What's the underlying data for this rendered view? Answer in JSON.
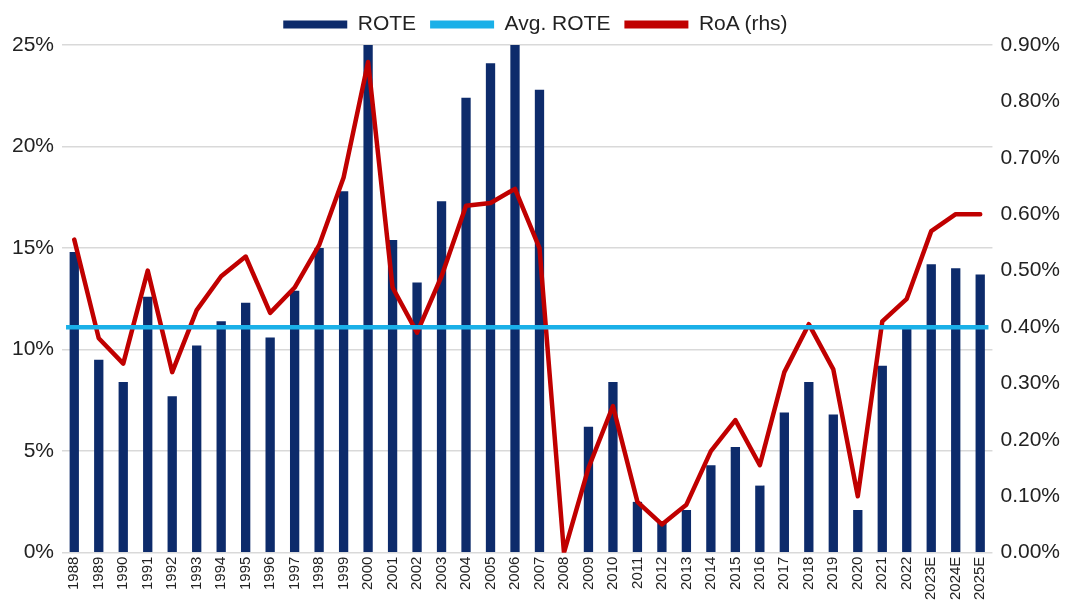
{
  "chart_data": {
    "type": "bar",
    "categories": [
      "1988",
      "1989",
      "1990",
      "1991",
      "1992",
      "1993",
      "1994",
      "1995",
      "1996",
      "1997",
      "1998",
      "1999",
      "2000",
      "2001",
      "2002",
      "2003",
      "2004",
      "2005",
      "2006",
      "2007",
      "2008",
      "2009",
      "2010",
      "2011",
      "2012",
      "2013",
      "2014",
      "2015",
      "2016",
      "2017",
      "2018",
      "2019",
      "2020",
      "2021",
      "2022",
      "2023E",
      "2024E",
      "2025E"
    ],
    "series": [
      {
        "name": "ROTE",
        "color": "#0d2b6b",
        "values": [
          14.8,
          9.5,
          8.4,
          12.6,
          7.7,
          10.2,
          11.4,
          12.3,
          10.6,
          12.9,
          15.0,
          17.8,
          25,
          15.4,
          13.3,
          17.3,
          22.4,
          24.1,
          25,
          22.8,
          0,
          6.2,
          8.4,
          2.5,
          1.5,
          2.1,
          4.3,
          5.2,
          3.3,
          6.9,
          8.4,
          6.8,
          2.1,
          9.2,
          11.1,
          14.2,
          14.0,
          13.7
        ]
      },
      {
        "name": "RoA (rhs)",
        "type": "line",
        "axis": "y2",
        "color": "#c00000",
        "values": [
          0.555,
          0.38,
          0.335,
          0.5,
          0.32,
          0.43,
          0.49,
          0.525,
          0.425,
          0.47,
          0.545,
          0.665,
          0.87,
          0.47,
          0.39,
          0.49,
          0.615,
          0.62,
          0.645,
          0.54,
          0.0,
          0.15,
          0.26,
          0.09,
          0.05,
          0.085,
          0.18,
          0.235,
          0.155,
          0.32,
          0.405,
          0.325,
          0.1,
          0.41,
          0.45,
          0.57,
          0.6,
          0.6
        ]
      }
    ],
    "ref_lines": [
      {
        "axis": "y",
        "value": 11.1,
        "label": "Avg. ROTE",
        "color": "#1ab0e8"
      }
    ],
    "ylim": [
      0,
      25
    ],
    "yticks": [
      {
        "value": 0,
        "label": "0%"
      },
      {
        "value": 5,
        "label": "5%"
      },
      {
        "value": 10,
        "label": "10%"
      },
      {
        "value": 15,
        "label": "15%"
      },
      {
        "value": 20,
        "label": "20%"
      },
      {
        "value": 25,
        "label": "25%"
      }
    ],
    "y2lim": [
      0,
      0.9
    ],
    "y2ticks": [
      {
        "value": 0,
        "label": "0.00%"
      },
      {
        "value": 0.1,
        "label": "0.10%"
      },
      {
        "value": 0.2,
        "label": "0.20%"
      },
      {
        "value": 0.3,
        "label": "0.30%"
      },
      {
        "value": 0.4,
        "label": "0.40%"
      },
      {
        "value": 0.5,
        "label": "0.50%"
      },
      {
        "value": 0.6,
        "label": "0.60%"
      },
      {
        "value": 0.7,
        "label": "0.70%"
      },
      {
        "value": 0.8,
        "label": "0.80%"
      },
      {
        "value": 0.9,
        "label": "0.90%"
      }
    ],
    "grid": "y",
    "legend": "top",
    "marker": "none",
    "line_style": "solid"
  }
}
